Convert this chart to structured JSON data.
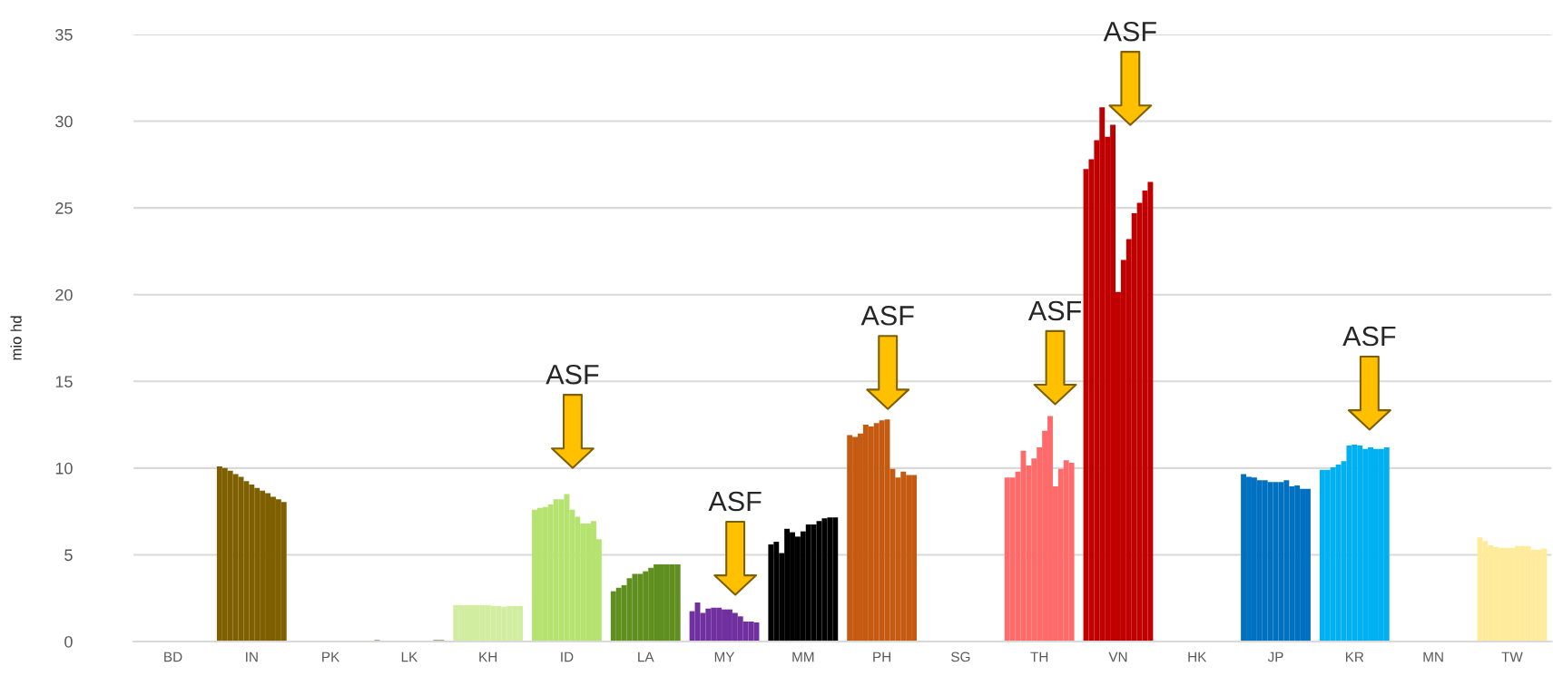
{
  "chart_data": {
    "type": "bar",
    "ylabel": "mio hd",
    "categories": [
      "BD",
      "IN",
      "PK",
      "LK",
      "KH",
      "ID",
      "LA",
      "MY",
      "MM",
      "PH",
      "SG",
      "TH",
      "VN",
      "HK",
      "JP",
      "KR",
      "MN",
      "TW"
    ],
    "ylim": [
      0,
      35
    ],
    "yticks": [
      0,
      5,
      10,
      15,
      20,
      25,
      30,
      35
    ],
    "grid": "y",
    "series": [
      {
        "colors": [
          "#bfbfbf",
          "#7f6000",
          "#bfbfbf",
          "#a8987a",
          "#d0eda0",
          "#b5e36f",
          "#5f8f1f",
          "#7030a0",
          "#000000",
          "#c55a11",
          "#bfbfbf",
          "#ff6b6b",
          "#c00000",
          "#bfbfbf",
          "#0070c0",
          "#00b0f0",
          "#bfbfbf",
          "#ffeb99"
        ],
        "values": [
          0,
          10.1,
          0,
          0.1,
          2.1,
          7.6,
          2.9,
          1.75,
          5.6,
          11.9,
          0,
          9.45,
          27.25,
          0,
          9.65,
          9.9,
          0,
          6.0
        ]
      },
      {
        "colors": [
          "#bfbfbf",
          "#7f6000",
          "#bfbfbf",
          "#c9b994",
          "#d0eda0",
          "#b5e36f",
          "#5f8f1f",
          "#7030a0",
          "#000000",
          "#c55a11",
          "#bfbfbf",
          "#ff6b6b",
          "#c00000",
          "#bfbfbf",
          "#0070c0",
          "#00b0f0",
          "#bfbfbf",
          "#ffeb99"
        ],
        "values": [
          0,
          10.0,
          0,
          0,
          2.1,
          7.7,
          3.1,
          2.25,
          5.75,
          11.8,
          0,
          9.45,
          27.8,
          0,
          9.5,
          9.9,
          0,
          5.8
        ]
      },
      {
        "colors": [
          "#bfbfbf",
          "#7f6000",
          "#bfbfbf",
          "#c9b994",
          "#d0eda0",
          "#b5e36f",
          "#5f8f1f",
          "#7030a0",
          "#000000",
          "#c55a11",
          "#bfbfbf",
          "#ff6b6b",
          "#c00000",
          "#bfbfbf",
          "#0070c0",
          "#00b0f0",
          "#bfbfbf",
          "#ffeb99"
        ],
        "values": [
          0,
          9.85,
          0,
          0,
          2.1,
          7.75,
          3.25,
          1.65,
          5.1,
          12.0,
          0,
          9.8,
          28.9,
          0,
          9.45,
          10.05,
          0,
          5.55
        ]
      },
      {
        "colors": [
          "#bfbfbf",
          "#7f6000",
          "#bfbfbf",
          "#c9b994",
          "#d0eda0",
          "#b5e36f",
          "#5f8f1f",
          "#7030a0",
          "#000000",
          "#c55a11",
          "#bfbfbf",
          "#ff6b6b",
          "#c00000",
          "#bfbfbf",
          "#0070c0",
          "#00b0f0",
          "#bfbfbf",
          "#ffeb99"
        ],
        "values": [
          0,
          9.65,
          0,
          0,
          2.1,
          7.9,
          3.65,
          1.9,
          6.5,
          12.5,
          0,
          11.0,
          30.8,
          0,
          9.3,
          10.2,
          0,
          5.45
        ]
      },
      {
        "colors": [
          "#bfbfbf",
          "#7f6000",
          "#bfbfbf",
          "#c9b994",
          "#d0eda0",
          "#b5e36f",
          "#5f8f1f",
          "#7030a0",
          "#000000",
          "#c55a11",
          "#bfbfbf",
          "#ff6b6b",
          "#c00000",
          "#bfbfbf",
          "#0070c0",
          "#00b0f0",
          "#bfbfbf",
          "#ffeb99"
        ],
        "values": [
          0,
          9.5,
          0,
          0,
          2.1,
          8.2,
          3.9,
          1.95,
          6.3,
          12.4,
          0,
          10.15,
          29.1,
          0,
          9.3,
          10.4,
          0,
          5.4
        ]
      },
      {
        "colors": [
          "#bfbfbf",
          "#7f6000",
          "#bfbfbf",
          "#c9b994",
          "#d0eda0",
          "#b5e36f",
          "#5f8f1f",
          "#7030a0",
          "#000000",
          "#c55a11",
          "#bfbfbf",
          "#ff6b6b",
          "#c00000",
          "#bfbfbf",
          "#0070c0",
          "#00b0f0",
          "#bfbfbf",
          "#ffeb99"
        ],
        "values": [
          0,
          9.25,
          0,
          0,
          2.1,
          8.2,
          3.9,
          1.95,
          6.05,
          12.6,
          0,
          10.55,
          29.8,
          0,
          9.2,
          11.3,
          0,
          5.4
        ]
      },
      {
        "colors": [
          "#bfbfbf",
          "#7f6000",
          "#bfbfbf",
          "#c9b994",
          "#d0eda0",
          "#b5e36f",
          "#5f8f1f",
          "#7030a0",
          "#000000",
          "#c55a11",
          "#bfbfbf",
          "#ff6b6b",
          "#c00000",
          "#bfbfbf",
          "#0070c0",
          "#00b0f0",
          "#bfbfbf",
          "#ffeb99"
        ],
        "values": [
          0,
          9.05,
          0,
          0,
          2.1,
          8.5,
          4.05,
          1.85,
          6.35,
          12.75,
          0,
          11.2,
          20.15,
          0,
          9.2,
          11.35,
          0,
          5.4
        ]
      },
      {
        "colors": [
          "#bfbfbf",
          "#7f6000",
          "#bfbfbf",
          "#c9b994",
          "#d0eda0",
          "#b5e36f",
          "#5f8f1f",
          "#7030a0",
          "#000000",
          "#c55a11",
          "#bfbfbf",
          "#ff6b6b",
          "#c00000",
          "#bfbfbf",
          "#0070c0",
          "#00b0f0",
          "#bfbfbf",
          "#ffeb99"
        ],
        "values": [
          0,
          8.85,
          0,
          0,
          2.05,
          7.6,
          4.25,
          1.85,
          6.75,
          12.8,
          0,
          12.15,
          22.0,
          0,
          9.2,
          11.3,
          0,
          5.5
        ]
      },
      {
        "colors": [
          "#bfbfbf",
          "#7f6000",
          "#bfbfbf",
          "#c9b994",
          "#d0eda0",
          "#b5e36f",
          "#5f8f1f",
          "#7030a0",
          "#000000",
          "#c55a11",
          "#bfbfbf",
          "#ff6b6b",
          "#c00000",
          "#bfbfbf",
          "#0070c0",
          "#00b0f0",
          "#bfbfbf",
          "#ffeb99"
        ],
        "values": [
          0,
          8.7,
          0,
          0,
          2.05,
          7.2,
          4.45,
          1.65,
          6.75,
          9.95,
          0,
          13.0,
          23.2,
          0,
          9.3,
          11.1,
          0,
          5.5
        ]
      },
      {
        "colors": [
          "#bfbfbf",
          "#7f6000",
          "#bfbfbf",
          "#c9b994",
          "#d0eda0",
          "#b5e36f",
          "#5f8f1f",
          "#7030a0",
          "#000000",
          "#c55a11",
          "#bfbfbf",
          "#ff6b6b",
          "#c00000",
          "#bfbfbf",
          "#0070c0",
          "#00b0f0",
          "#bfbfbf",
          "#ffeb99"
        ],
        "values": [
          0,
          8.55,
          0,
          0,
          2.0,
          6.8,
          4.45,
          1.45,
          6.95,
          9.45,
          0,
          8.95,
          24.7,
          0,
          8.95,
          11.2,
          0,
          5.5
        ]
      },
      {
        "colors": [
          "#bfbfbf",
          "#7f6000",
          "#bfbfbf",
          "#c9b994",
          "#d0eda0",
          "#b5e36f",
          "#5f8f1f",
          "#7030a0",
          "#000000",
          "#c55a11",
          "#bfbfbf",
          "#ff6b6b",
          "#c00000",
          "#bfbfbf",
          "#0070c0",
          "#00b0f0",
          "#bfbfbf",
          "#ffeb99"
        ],
        "values": [
          0,
          8.35,
          0,
          0,
          2.05,
          6.8,
          4.45,
          1.15,
          7.1,
          9.8,
          0,
          9.95,
          25.3,
          0,
          9.0,
          11.1,
          0,
          5.3
        ]
      },
      {
        "colors": [
          "#bfbfbf",
          "#7f6000",
          "#bfbfbf",
          "#a8987a",
          "#d0eda0",
          "#b5e36f",
          "#5f8f1f",
          "#7030a0",
          "#000000",
          "#c55a11",
          "#bfbfbf",
          "#ff6b6b",
          "#c00000",
          "#bfbfbf",
          "#0070c0",
          "#00b0f0",
          "#bfbfbf",
          "#ffeb99"
        ],
        "values": [
          0,
          8.2,
          0,
          0.1,
          2.05,
          6.95,
          4.45,
          1.15,
          7.15,
          9.6,
          0,
          10.45,
          26.0,
          0,
          8.8,
          11.1,
          0,
          5.3
        ]
      },
      {
        "colors": [
          "#bfbfbf",
          "#7f6000",
          "#bfbfbf",
          "#a8987a",
          "#d0eda0",
          "#b5e36f",
          "#5f8f1f",
          "#7030a0",
          "#000000",
          "#c55a11",
          "#bfbfbf",
          "#ff6b6b",
          "#c00000",
          "#bfbfbf",
          "#0070c0",
          "#00b0f0",
          "#bfbfbf",
          "#ffeb99"
        ],
        "values": [
          0,
          8.05,
          0,
          0.1,
          2.05,
          5.9,
          4.45,
          1.1,
          7.15,
          9.6,
          0,
          10.3,
          26.5,
          0,
          8.8,
          11.2,
          0,
          5.35
        ]
      }
    ],
    "annotations": [
      "ASF",
      "ASF",
      "ASF",
      "ASF",
      "ASF",
      "ASF"
    ]
  }
}
